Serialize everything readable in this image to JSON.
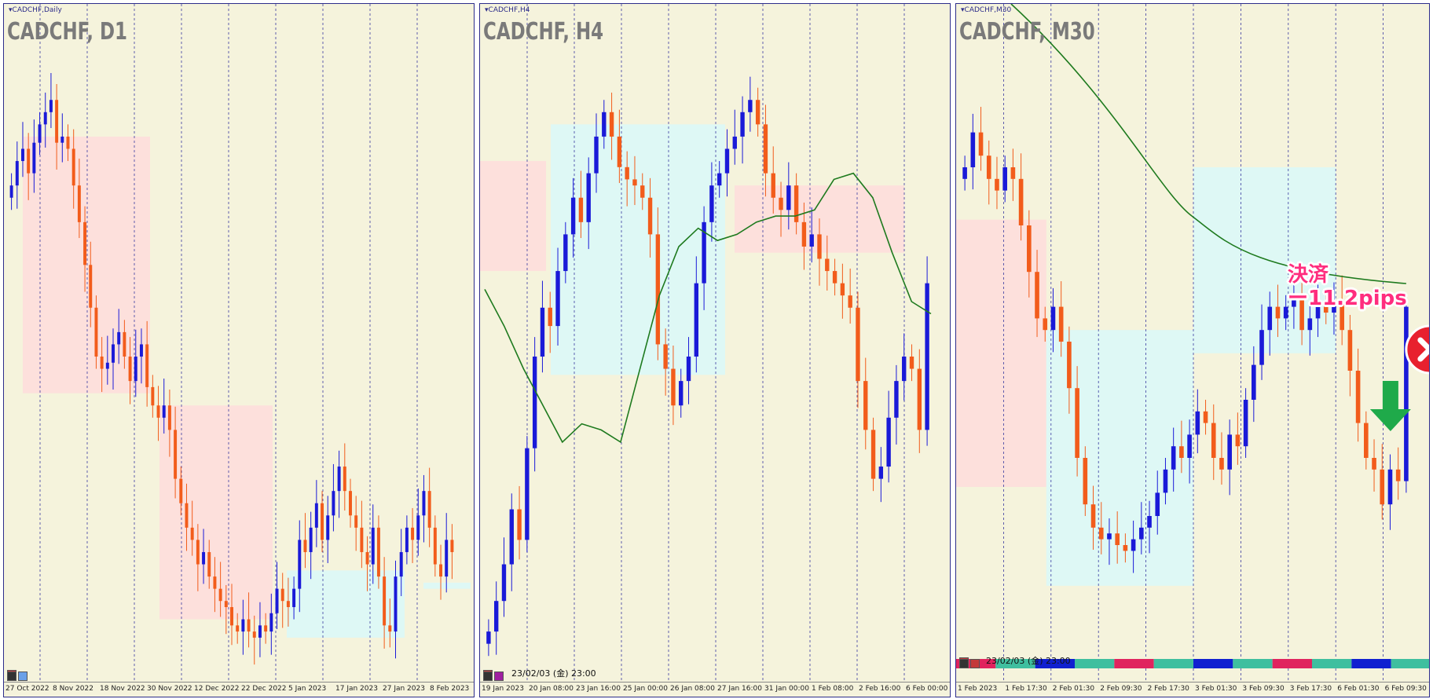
{
  "chart_data": [
    {
      "type": "candlestick",
      "window_label": "CADCHF,Daily",
      "title": "CADCHF, D1",
      "x_ticks": [
        "27 Oct 2022",
        "8 Nov 2022",
        "18 Nov 2022",
        "30 Nov 2022",
        "12 Dec 2022",
        "22 Dec 2022",
        "5 Jan 2023",
        "17 Jan 2023",
        "27 Jan 2023",
        "8 Feb 2023"
      ],
      "zones": [
        {
          "kind": "supply",
          "from": 0.04,
          "to": 0.31,
          "top": 0.86,
          "bottom": 0.44,
          "color": "#fde0dc"
        },
        {
          "kind": "supply",
          "from": 0.33,
          "to": 0.57,
          "top": 0.42,
          "bottom": 0.07,
          "color": "#fde0dc"
        },
        {
          "kind": "demand",
          "from": 0.6,
          "to": 0.85,
          "top": 0.15,
          "bottom": 0.04,
          "color": "#def8f5"
        },
        {
          "kind": "demand",
          "from": 0.89,
          "to": 0.99,
          "top": 0.13,
          "bottom": 0.12,
          "color": "#def8f5"
        }
      ],
      "closes": [
        0.78,
        0.82,
        0.84,
        0.8,
        0.85,
        0.88,
        0.9,
        0.92,
        0.85,
        0.86,
        0.84,
        0.78,
        0.72,
        0.65,
        0.58,
        0.5,
        0.48,
        0.49,
        0.52,
        0.54,
        0.5,
        0.46,
        0.5,
        0.52,
        0.45,
        0.42,
        0.4,
        0.42,
        0.38,
        0.3,
        0.26,
        0.22,
        0.2,
        0.16,
        0.18,
        0.14,
        0.12,
        0.1,
        0.09,
        0.06,
        0.05,
        0.07,
        0.05,
        0.04,
        0.06,
        0.05,
        0.08,
        0.12,
        0.1,
        0.09,
        0.12,
        0.2,
        0.18,
        0.22,
        0.26,
        0.2,
        0.24,
        0.28,
        0.32,
        0.28,
        0.24,
        0.22,
        0.18,
        0.16,
        0.22,
        0.14,
        0.06,
        0.05,
        0.14,
        0.18,
        0.22,
        0.2,
        0.24,
        0.28,
        0.22,
        0.16,
        0.14,
        0.2,
        0.18
      ]
    },
    {
      "type": "candlestick",
      "window_label": "CADCHF,H4",
      "title": "CADCHF, H4",
      "timestamp": "23/02/03 (金) 23:00",
      "x_ticks": [
        "19 Jan 2023",
        "20 Jan 08:00",
        "23 Jan 16:00",
        "25 Jan 00:00",
        "26 Jan 08:00",
        "27 Jan 16:00",
        "31 Jan 00:00",
        "1 Feb 08:00",
        "2 Feb 16:00",
        "6 Feb 00:00"
      ],
      "zones": [
        {
          "kind": "supply",
          "from": 0.0,
          "to": 0.14,
          "top": 0.82,
          "bottom": 0.64,
          "color": "#fde0dc"
        },
        {
          "kind": "demand",
          "from": 0.15,
          "to": 0.52,
          "top": 0.88,
          "bottom": 0.47,
          "color": "#def8f5"
        },
        {
          "kind": "supply",
          "from": 0.54,
          "to": 0.9,
          "top": 0.78,
          "bottom": 0.67,
          "color": "#fde0dc"
        }
      ],
      "ma": [
        0.61,
        0.55,
        0.48,
        0.42,
        0.36,
        0.39,
        0.38,
        0.36,
        0.48,
        0.6,
        0.68,
        0.71,
        0.69,
        0.7,
        0.72,
        0.73,
        0.73,
        0.74,
        0.79,
        0.8,
        0.76,
        0.67,
        0.59,
        0.57
      ],
      "closes": [
        0.05,
        0.1,
        0.16,
        0.25,
        0.2,
        0.35,
        0.5,
        0.58,
        0.55,
        0.64,
        0.7,
        0.76,
        0.72,
        0.8,
        0.86,
        0.9,
        0.86,
        0.81,
        0.79,
        0.78,
        0.76,
        0.7,
        0.52,
        0.48,
        0.42,
        0.46,
        0.5,
        0.62,
        0.72,
        0.78,
        0.8,
        0.84,
        0.86,
        0.9,
        0.92,
        0.88,
        0.8,
        0.76,
        0.74,
        0.78,
        0.72,
        0.68,
        0.7,
        0.66,
        0.64,
        0.62,
        0.6,
        0.58,
        0.46,
        0.38,
        0.3,
        0.32,
        0.4,
        0.46,
        0.5,
        0.48,
        0.38,
        0.62
      ]
    },
    {
      "type": "candlestick",
      "window_label": "CADCHF,M30",
      "title": "CADCHF, M30",
      "timestamp": "23/02/03 (金) 23:00",
      "x_ticks": [
        "1 Feb 2023",
        "1 Feb 17:30",
        "2 Feb 01:30",
        "2 Feb 09:30",
        "2 Feb 17:30",
        "3 Feb 01:30",
        "3 Feb 09:30",
        "3 Feb 17:30",
        "6 Feb 01:30",
        "6 Feb 09:30"
      ],
      "zones": [
        {
          "kind": "supply",
          "from": 0.0,
          "to": 0.19,
          "top": 0.71,
          "bottom": 0.25,
          "color": "#fde0dc"
        },
        {
          "kind": "demand",
          "from": 0.19,
          "to": 0.5,
          "top": 0.52,
          "bottom": 0.08,
          "color": "#def8f5"
        },
        {
          "kind": "demand",
          "from": 0.5,
          "to": 0.8,
          "top": 0.8,
          "bottom": 0.48,
          "color": "#def8f5"
        }
      ],
      "ma_end": 0.6,
      "closes": [
        0.8,
        0.86,
        0.82,
        0.78,
        0.76,
        0.8,
        0.78,
        0.7,
        0.62,
        0.54,
        0.52,
        0.56,
        0.5,
        0.42,
        0.3,
        0.22,
        0.18,
        0.16,
        0.17,
        0.15,
        0.14,
        0.16,
        0.18,
        0.2,
        0.24,
        0.28,
        0.32,
        0.3,
        0.34,
        0.38,
        0.36,
        0.3,
        0.28,
        0.34,
        0.32,
        0.4,
        0.46,
        0.52,
        0.56,
        0.54,
        0.56,
        0.58,
        0.52,
        0.54,
        0.56,
        0.55,
        0.57,
        0.52,
        0.45,
        0.36,
        0.3,
        0.28,
        0.22,
        0.28,
        0.26,
        0.56
      ],
      "annotation_text": [
        "決済",
        "ー11.2pips"
      ],
      "session_colors": [
        "#e0245e",
        "#3fbf9f",
        "#1020d0",
        "#3fbf9f",
        "#e0245e",
        "#3fbf9f",
        "#1020d0",
        "#3fbf9f",
        "#e0245e",
        "#3fbf9f",
        "#1020d0",
        "#3fbf9f"
      ]
    }
  ],
  "colors": {
    "bull": "#1a1ad8",
    "bear": "#f25c1b",
    "ma": "#1e7a1e",
    "background": "#f5f3dc",
    "grid": "#3a3aa0"
  },
  "icons": [
    "stop-sign-icon",
    "arrow-down-icon",
    "close-circle-icon"
  ]
}
